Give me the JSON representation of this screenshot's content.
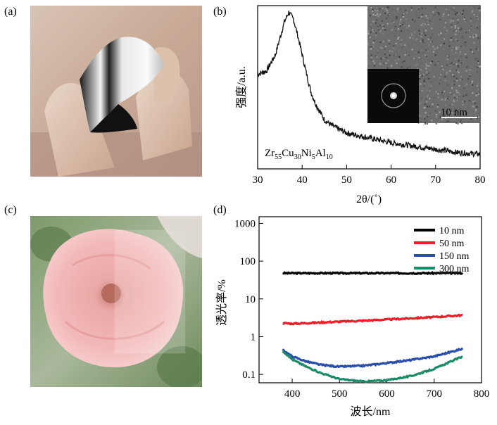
{
  "panels": {
    "a": {
      "label": "(a)"
    },
    "b": {
      "label": "(b)"
    },
    "c": {
      "label": "(c)"
    },
    "d": {
      "label": "(d)"
    }
  },
  "colors": {
    "xrd": "#111111",
    "s10": "#000000",
    "s50": "#e8202a",
    "s150": "#2a4fa8",
    "s300": "#1d8a6a"
  },
  "chart_data": [
    {
      "type": "line",
      "panel": "b",
      "xlabel": "2θ/(˚)",
      "ylabel": "强度/a.u.",
      "xlim": [
        30,
        80
      ],
      "xticks": [
        30,
        40,
        50,
        60,
        70,
        80
      ],
      "annotation": {
        "base": "Zr",
        "parts": [
          [
            "Zr",
            "55"
          ],
          [
            "Cu",
            "30"
          ],
          [
            "Ni",
            "5"
          ],
          [
            "Al",
            "10"
          ]
        ]
      },
      "inset_scale": "10 nm",
      "series": [
        {
          "values_desc": "",
          "x": [
            30,
            32,
            34,
            35,
            36,
            37,
            38,
            39,
            40,
            41,
            42,
            43,
            44,
            45,
            47,
            50,
            55,
            60,
            65,
            70,
            75,
            80
          ],
          "y": [
            0.58,
            0.6,
            0.7,
            0.8,
            0.9,
            0.96,
            0.92,
            0.82,
            0.7,
            0.58,
            0.47,
            0.4,
            0.35,
            0.3,
            0.26,
            0.22,
            0.19,
            0.16,
            0.14,
            0.12,
            0.1,
            0.09
          ]
        }
      ]
    },
    {
      "type": "line",
      "panel": "d",
      "xlabel": "波长/nm",
      "ylabel": "透光率/%",
      "yscale": "log",
      "xlim": [
        330,
        800
      ],
      "ylim": [
        0.06,
        1500
      ],
      "xticks": [
        400,
        500,
        600,
        700,
        800
      ],
      "yticks": [
        "0.1",
        "1",
        "10",
        "100",
        "1000"
      ],
      "legend_position": "top-right",
      "series": [
        {
          "name": "10 nm",
          "x": [
            380,
            450,
            500,
            550,
            600,
            650,
            700,
            760
          ],
          "y": [
            48,
            48,
            48,
            48,
            48,
            48,
            48,
            48
          ]
        },
        {
          "name": "50 nm",
          "x": [
            380,
            400,
            450,
            500,
            550,
            600,
            650,
            700,
            760
          ],
          "y": [
            2.3,
            2.2,
            2.35,
            2.5,
            2.65,
            2.85,
            3.05,
            3.3,
            3.7
          ]
        },
        {
          "name": "150 nm",
          "x": [
            380,
            400,
            430,
            460,
            500,
            550,
            600,
            650,
            700,
            760
          ],
          "y": [
            0.45,
            0.3,
            0.22,
            0.18,
            0.16,
            0.17,
            0.2,
            0.24,
            0.3,
            0.48
          ]
        },
        {
          "name": "300 nm",
          "x": [
            380,
            400,
            430,
            460,
            500,
            550,
            600,
            650,
            700,
            760
          ],
          "y": [
            0.42,
            0.25,
            0.16,
            0.11,
            0.075,
            0.065,
            0.07,
            0.09,
            0.14,
            0.3
          ]
        }
      ]
    }
  ]
}
